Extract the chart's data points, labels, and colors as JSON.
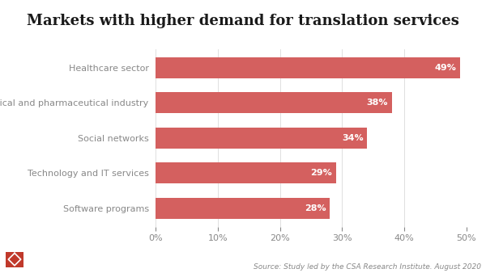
{
  "title": "Markets with higher demand for translation services",
  "categories": [
    "Software programs",
    "Technology and IT services",
    "Social networks",
    "Medical and pharmaceutical industry",
    "Healthcare sector"
  ],
  "values": [
    28,
    29,
    34,
    38,
    49
  ],
  "bar_color": "#d4605f",
  "label_color": "#ffffff",
  "title_color": "#1a1a1a",
  "tick_label_color": "#888888",
  "background_color": "#ffffff",
  "source_text": "Source: Study led by the CSA Research Institute. August 2020",
  "xlim": [
    0,
    50
  ],
  "xticks": [
    0,
    10,
    20,
    30,
    40,
    50
  ],
  "title_fontsize": 13,
  "bar_label_fontsize": 8,
  "tick_fontsize": 8,
  "category_fontsize": 8,
  "source_fontsize": 6.5,
  "logo_color": "#c0392b",
  "logo_diamond_color": "#ffffff"
}
